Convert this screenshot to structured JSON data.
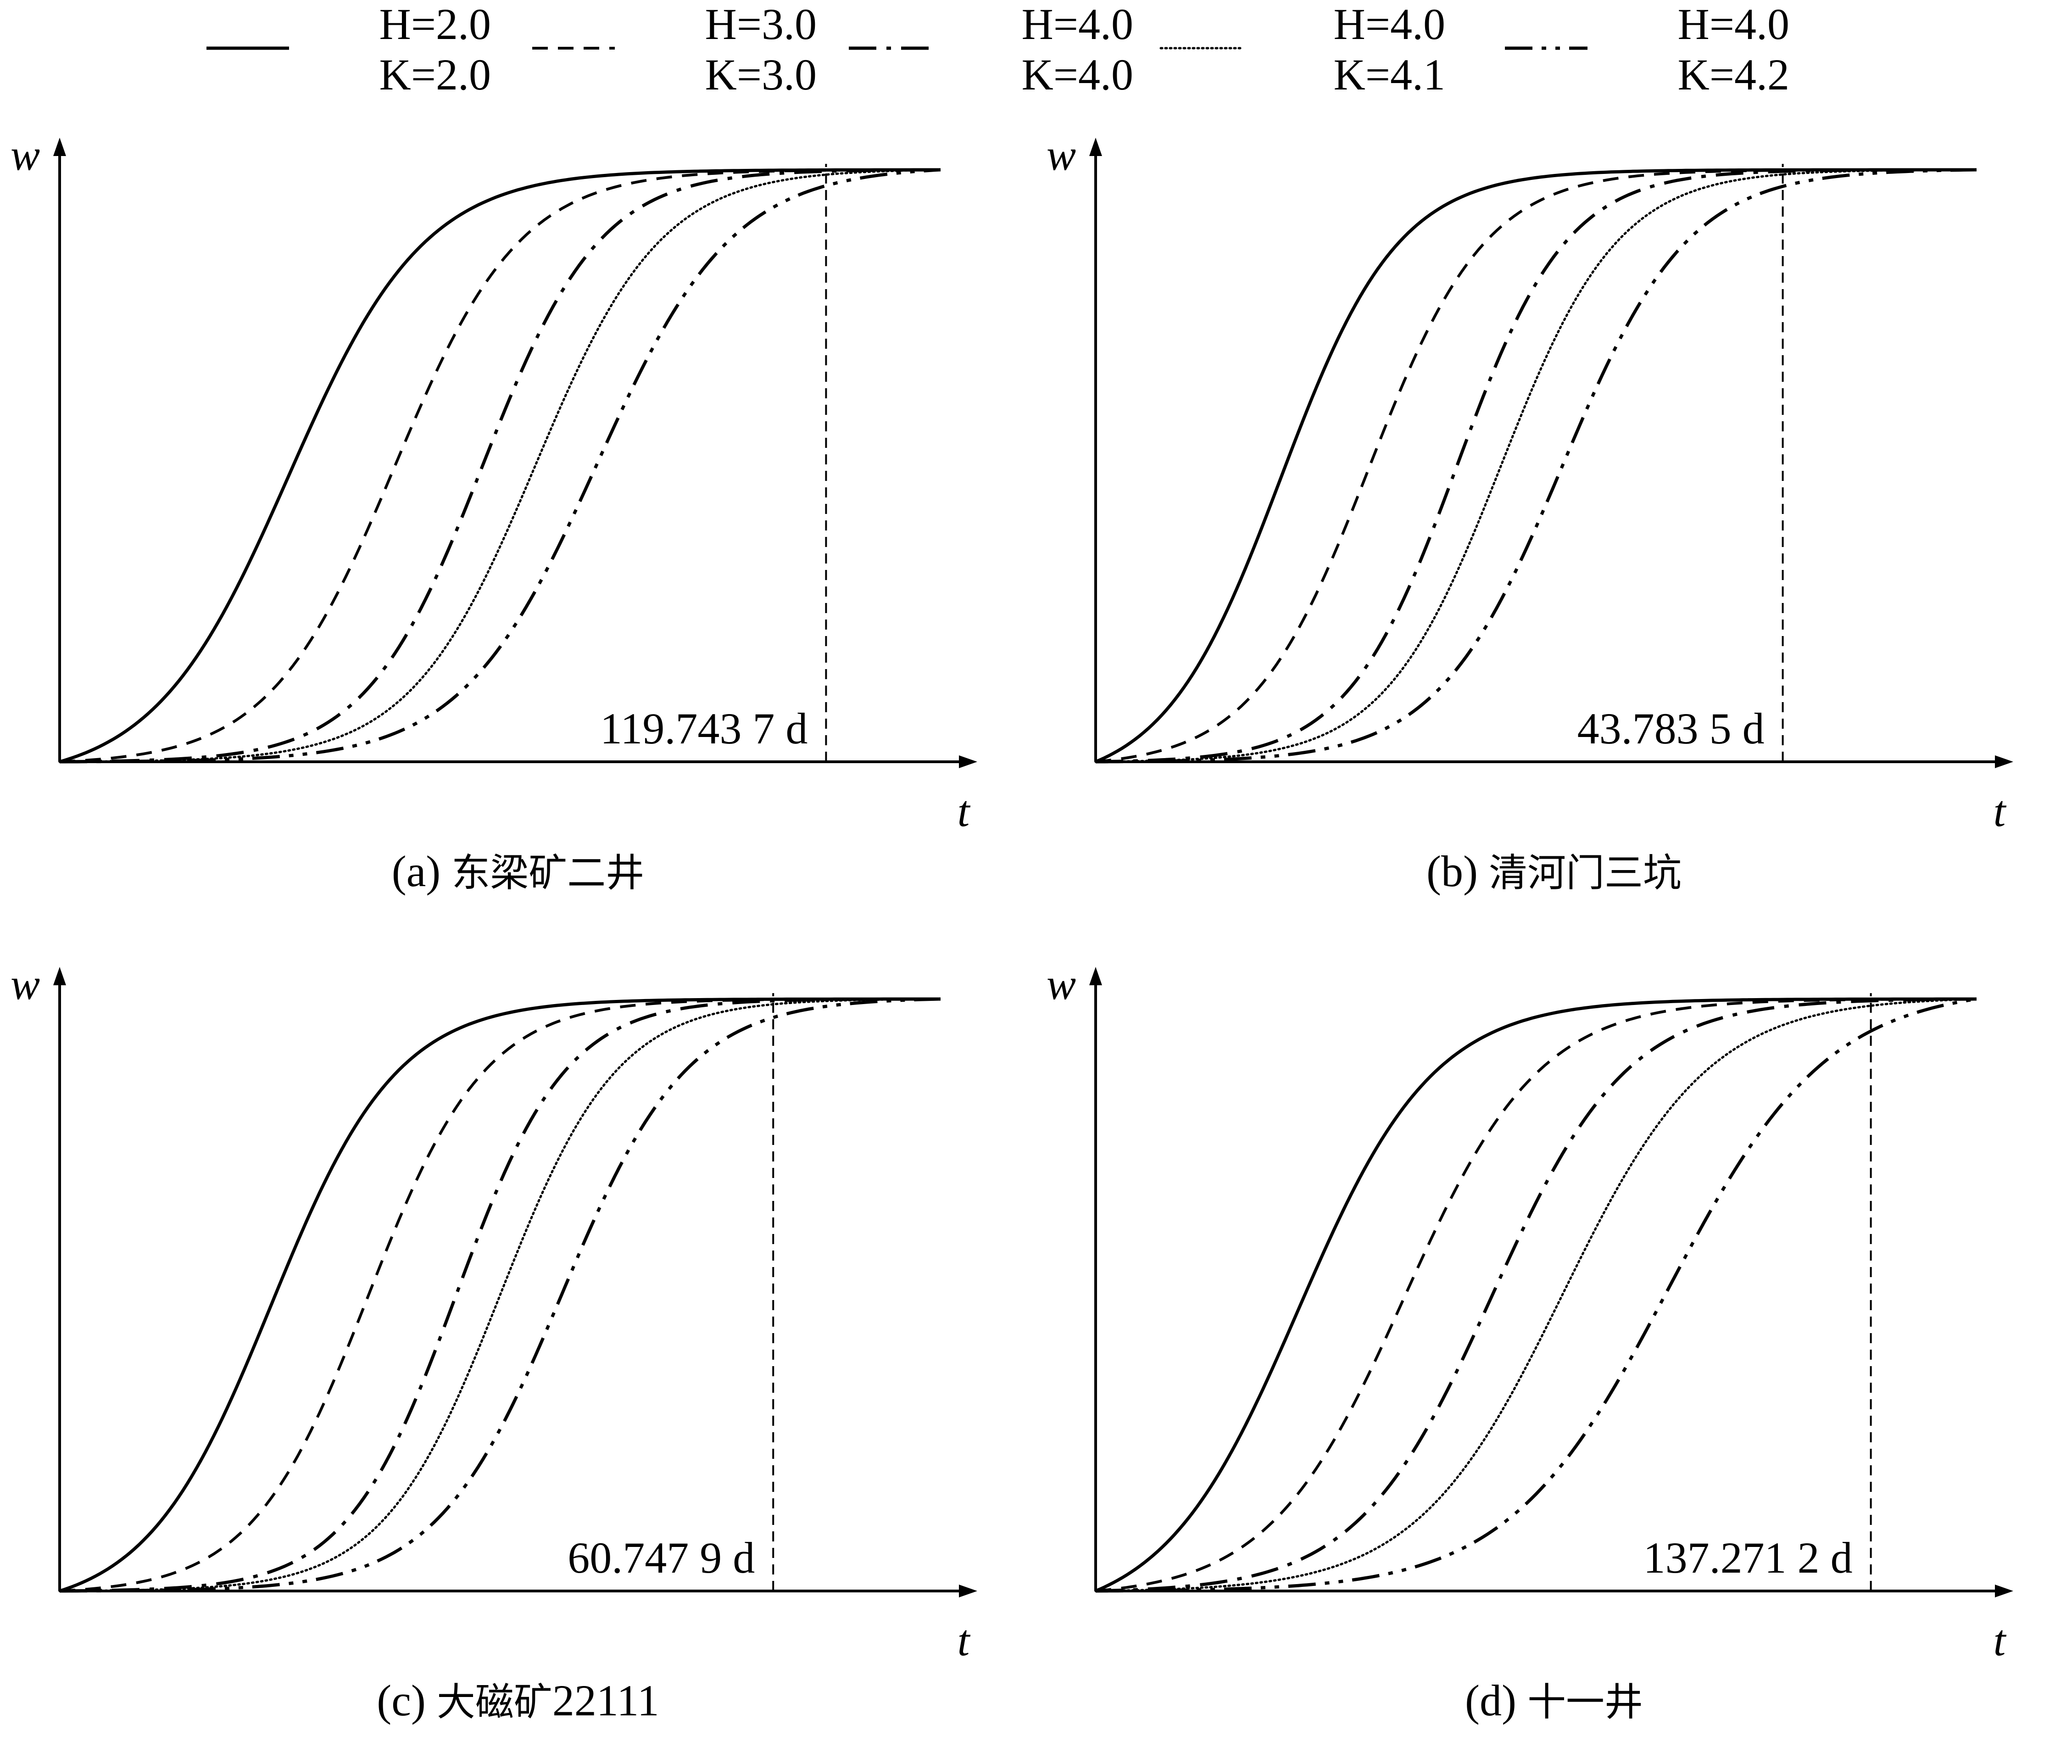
{
  "legend": [
    {
      "line1": "H=2.0",
      "line2": "K=2.0",
      "style": "solid"
    },
    {
      "line1": "H=3.0",
      "line2": "K=3.0",
      "style": "dash"
    },
    {
      "line1": "H=4.0",
      "line2": "K=4.0",
      "style": "dashdot"
    },
    {
      "line1": "H=4.0",
      "line2": "K=4.1",
      "style": "dotted"
    },
    {
      "line1": "H=4.0",
      "line2": "K=4.2",
      "style": "dashdotdot"
    }
  ],
  "chart_data": [
    {
      "type": "line",
      "panel": "a",
      "caption_prefix": "(a) ",
      "caption_cn": "东梁矿二井",
      "xlabel": "t",
      "ylabel": "w",
      "annotation": "119.743 7 d",
      "xlim": [
        0,
        1
      ],
      "ylim": [
        0,
        1
      ],
      "marker_x": 0.87,
      "series": [
        {
          "label": "H=2.0 K=2.0",
          "midpoint": 0.26,
          "slope": 13,
          "style": "solid"
        },
        {
          "label": "H=3.0 K=3.0",
          "midpoint": 0.38,
          "slope": 14,
          "style": "dash"
        },
        {
          "label": "H=4.0 K=4.0",
          "midpoint": 0.48,
          "slope": 15,
          "style": "dashdot"
        },
        {
          "label": "H=4.0 K=4.1",
          "midpoint": 0.54,
          "slope": 14,
          "style": "dotted"
        },
        {
          "label": "H=4.0 K=4.2",
          "midpoint": 0.61,
          "slope": 13,
          "style": "dashdotdot"
        }
      ]
    },
    {
      "type": "line",
      "panel": "b",
      "caption_prefix": "(b) ",
      "caption_cn": "清河门三坑",
      "xlabel": "t",
      "ylabel": "w",
      "annotation": "43.783 5 d",
      "xlim": [
        0,
        1
      ],
      "ylim": [
        0,
        1
      ],
      "marker_x": 0.78,
      "series": [
        {
          "label": "H=2.0 K=2.0",
          "midpoint": 0.21,
          "slope": 15,
          "style": "solid"
        },
        {
          "label": "H=3.0 K=3.0",
          "midpoint": 0.31,
          "slope": 15,
          "style": "dash"
        },
        {
          "label": "H=4.0 K=4.0",
          "midpoint": 0.41,
          "slope": 16,
          "style": "dashdot"
        },
        {
          "label": "H=4.0 K=4.1",
          "midpoint": 0.46,
          "slope": 15,
          "style": "dotted"
        },
        {
          "label": "H=4.0 K=4.2",
          "midpoint": 0.53,
          "slope": 14,
          "style": "dashdotdot"
        }
      ]
    },
    {
      "type": "line",
      "panel": "c",
      "caption_prefix": "(c) ",
      "caption_cn": "大磁矿",
      "caption_suffix": "22111",
      "xlabel": "t",
      "ylabel": "w",
      "annotation": "60.747 9 d",
      "xlim": [
        0,
        1
      ],
      "ylim": [
        0,
        1
      ],
      "marker_x": 0.81,
      "series": [
        {
          "label": "H=2.0 K=2.0",
          "midpoint": 0.24,
          "slope": 14,
          "style": "solid"
        },
        {
          "label": "H=3.0 K=3.0",
          "midpoint": 0.35,
          "slope": 15,
          "style": "dash"
        },
        {
          "label": "H=4.0 K=4.0",
          "midpoint": 0.45,
          "slope": 16,
          "style": "dashdot"
        },
        {
          "label": "H=4.0 K=4.1",
          "midpoint": 0.5,
          "slope": 15,
          "style": "dotted"
        },
        {
          "label": "H=4.0 K=4.2",
          "midpoint": 0.57,
          "slope": 14,
          "style": "dashdotdot"
        }
      ]
    },
    {
      "type": "line",
      "panel": "d",
      "caption_prefix": "(d) ",
      "caption_cn": "十一井",
      "xlabel": "t",
      "ylabel": "w",
      "annotation": "137.271 2 d",
      "xlim": [
        0,
        1
      ],
      "ylim": [
        0,
        1
      ],
      "marker_x": 0.88,
      "series": [
        {
          "label": "H=2.0 K=2.0",
          "midpoint": 0.23,
          "slope": 13,
          "style": "solid"
        },
        {
          "label": "H=3.0 K=3.0",
          "midpoint": 0.35,
          "slope": 13,
          "style": "dash"
        },
        {
          "label": "H=4.0 K=4.0",
          "midpoint": 0.45,
          "slope": 13,
          "style": "dashdot"
        },
        {
          "label": "H=4.0 K=4.1",
          "midpoint": 0.53,
          "slope": 12,
          "style": "dotted"
        },
        {
          "label": "H=4.0 K=4.2",
          "midpoint": 0.65,
          "slope": 11,
          "style": "dashdotdot"
        }
      ]
    }
  ]
}
